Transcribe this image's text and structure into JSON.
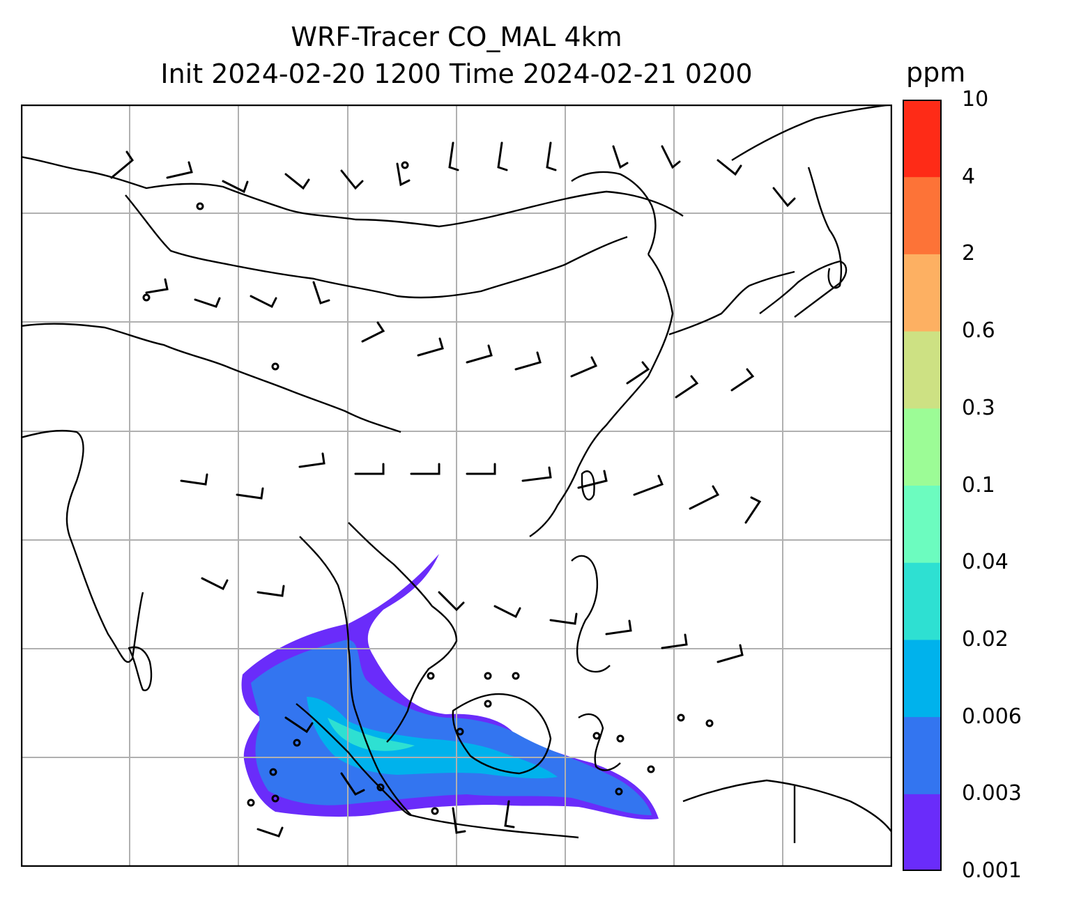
{
  "title": {
    "line1": "WRF-Tracer CO_MAL 4km",
    "line2": "Init 2024-02-20 1200 Time 2024-02-21 0200"
  },
  "colorbar": {
    "unit": "ppm",
    "tick_labels": [
      "0.001",
      "0.003",
      "0.006",
      "0.02",
      "0.04",
      "0.1",
      "0.3",
      "0.6",
      "2",
      "4",
      "10"
    ],
    "bin_colors": [
      "#6a2cfa",
      "#3375f0",
      "#00b2ec",
      "#2ee0d2",
      "#6cfcbf",
      "#9cfc96",
      "#cde183",
      "#fdb062",
      "#fd7337",
      "#fe2b17"
    ]
  },
  "map": {
    "field": "CO_MAL tracer",
    "gridlines": true,
    "wind_barbs": true,
    "coastlines": true,
    "border_color": "#000000",
    "grid_color": "#b0b0b0"
  }
}
